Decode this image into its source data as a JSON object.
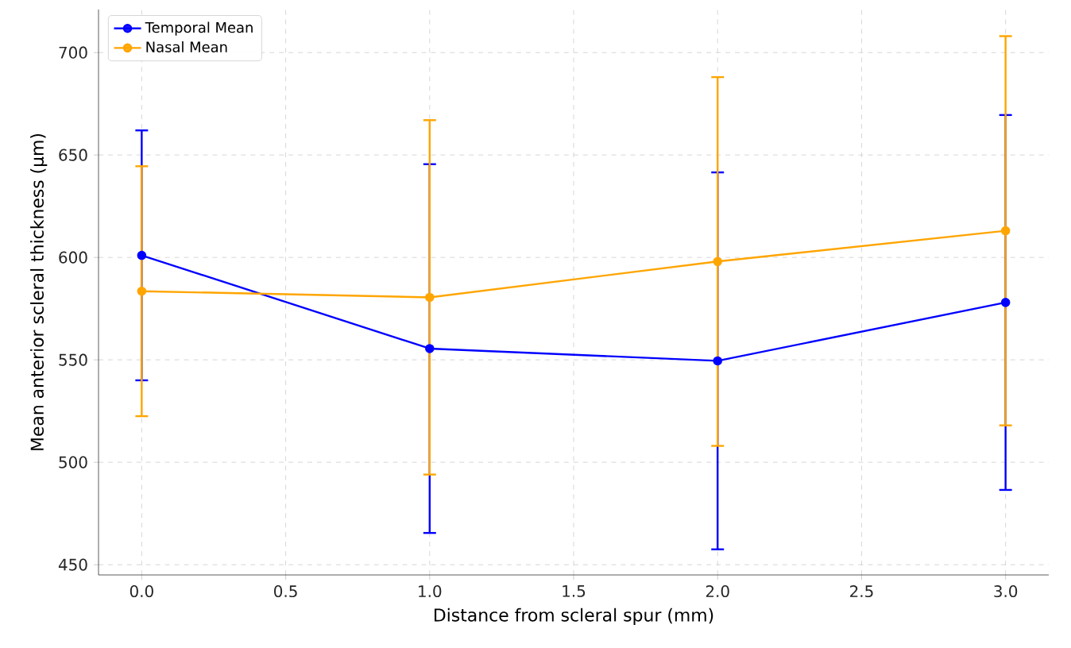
{
  "chart_data": {
    "type": "line",
    "xlabel": "Distance from scleral spur (mm)",
    "ylabel": "Mean anterior scleral thickness (µm)",
    "x": [
      0,
      1,
      2,
      3
    ],
    "series": [
      {
        "name": "Temporal Mean",
        "color": "#0000ff",
        "values": [
          601,
          555.5,
          549.5,
          578
        ],
        "errors": [
          61,
          90,
          92,
          91.5
        ]
      },
      {
        "name": "Nasal Mean",
        "color": "#ffa500",
        "values": [
          583.5,
          580.5,
          598,
          613
        ],
        "errors": [
          61,
          86.5,
          90,
          95
        ]
      }
    ],
    "xlim": [
      -0.15,
      3.15
    ],
    "ylim": [
      445,
      721
    ],
    "xticks": [
      {
        "value": 0,
        "label": "0.0"
      },
      {
        "value": 0.5,
        "label": "0.5"
      },
      {
        "value": 1,
        "label": "1.0"
      },
      {
        "value": 1.5,
        "label": "1.5"
      },
      {
        "value": 2,
        "label": "2.0"
      },
      {
        "value": 2.5,
        "label": "2.5"
      },
      {
        "value": 3,
        "label": "3.0"
      }
    ],
    "yticks": [
      450,
      500,
      550,
      600,
      650,
      700
    ],
    "grid": true,
    "legend": "top left",
    "marker": "circle",
    "line_style": "solid"
  }
}
